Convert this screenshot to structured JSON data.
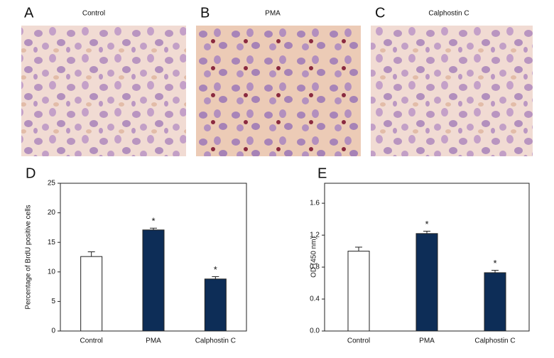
{
  "images": [
    {
      "letter": "A",
      "title": "Control"
    },
    {
      "letter": "B",
      "title": "PMA"
    },
    {
      "letter": "C",
      "title": "Calphostin C"
    }
  ],
  "chart_data": [
    {
      "type": "bar",
      "panel": "D",
      "ylabel": "Percentage of BrdU positive cells",
      "categories": [
        "Control",
        "PMA",
        "Calphostin C"
      ],
      "values": [
        12.6,
        17.1,
        8.8
      ],
      "errors": [
        0.8,
        0.3,
        0.4
      ],
      "annotations": [
        null,
        "*",
        "*"
      ],
      "colors": [
        "#ffffff",
        "#0d2d57",
        "#0d2d57"
      ],
      "ylim": [
        0,
        25
      ],
      "yticks": [
        0,
        5,
        10,
        15,
        20,
        25
      ]
    },
    {
      "type": "bar",
      "panel": "E",
      "ylabel": "OD (450 nm)",
      "categories": [
        "Control",
        "PMA",
        "Calphostin C"
      ],
      "values": [
        1.0,
        1.22,
        0.73
      ],
      "errors": [
        0.05,
        0.03,
        0.03
      ],
      "annotations": [
        null,
        "*",
        "*"
      ],
      "colors": [
        "#ffffff",
        "#0d2d57",
        "#0d2d57"
      ],
      "ylim": [
        0,
        1.85
      ],
      "yticks": [
        {
          "value": 0,
          "label": "0.0"
        },
        0.4,
        0.8,
        1.2,
        1.6
      ]
    }
  ]
}
